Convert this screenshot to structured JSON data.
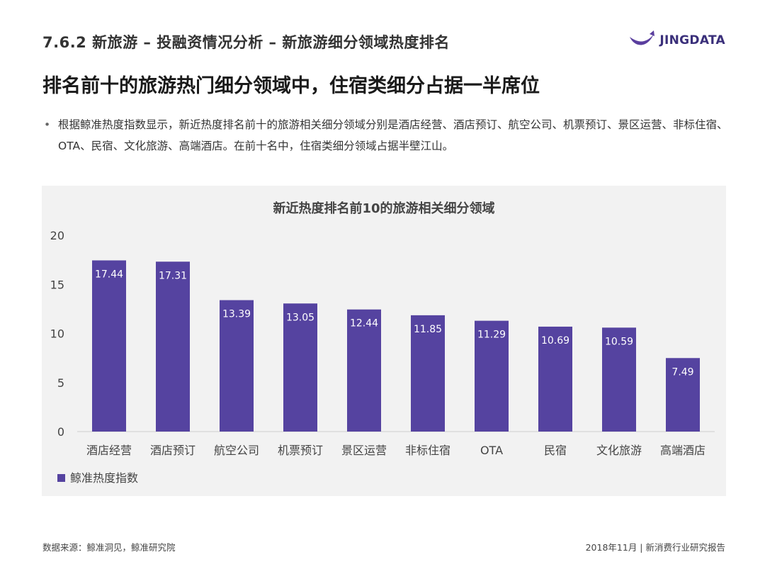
{
  "header": {
    "section_title": "7.6.2 新旅游 – 投融资情况分析 – 新旅游细分领域热度排名",
    "logo_text": "JINGDATA"
  },
  "headline": "排名前十的旅游热门细分领域中，住宿类细分占据一半席位",
  "bullet": {
    "marker": "•",
    "text": "根据鲸准热度指数显示，新近热度排名前十的旅游相关细分领域分别是酒店经营、酒店预订、航空公司、机票预订、景区运营、非标住宿、OTA、民宿、文化旅游、高端酒店。在前十名中，住宿类细分领域占据半壁江山。"
  },
  "colors": {
    "bar": "#5543a0",
    "logo": "#5a3e9e",
    "chart_bg": "#f2f2f2"
  },
  "chart_data": {
    "type": "bar",
    "title": "新近热度排名前10的旅游相关细分领域",
    "categories": [
      "酒店经营",
      "酒店预订",
      "航空公司",
      "机票预订",
      "景区运营",
      "非标住宿",
      "OTA",
      "民宿",
      "文化旅游",
      "高端酒店"
    ],
    "series": [
      {
        "name": "鲸准热度指数",
        "values": [
          17.44,
          17.31,
          13.39,
          13.05,
          12.44,
          11.85,
          11.29,
          10.69,
          10.59,
          7.49
        ]
      }
    ],
    "value_labels": [
      "17.44",
      "17.31",
      "13.39",
      "13.05",
      "12.44",
      "11.85",
      "11.29",
      "10.69",
      "10.59",
      "7.49"
    ],
    "ylim": [
      0,
      20
    ],
    "yticks": [
      "0",
      "5",
      "10",
      "15",
      "20"
    ],
    "xlabel": "",
    "ylabel": "",
    "legend": "bottom-left",
    "grid": false
  },
  "footer": {
    "source": "数据来源：鲸准洞见，鲸准研究院",
    "report": "2018年11月 | 新消费行业研究报告"
  }
}
